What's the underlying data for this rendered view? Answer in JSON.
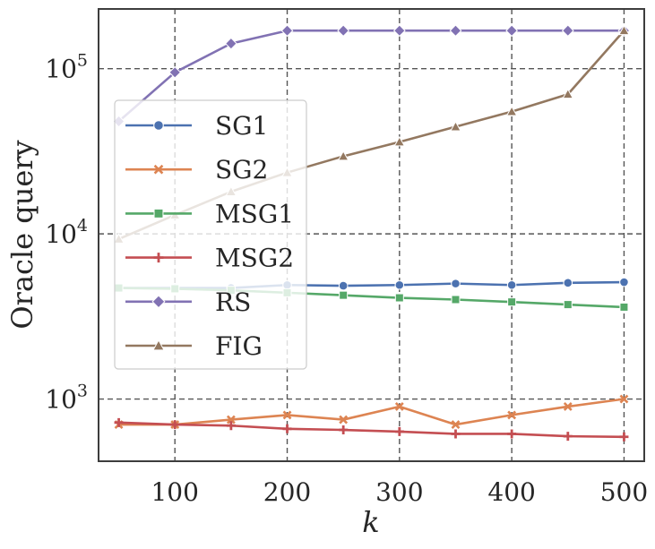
{
  "chart_data": {
    "type": "line",
    "title": "",
    "xlabel": "k",
    "ylabel": "Oracle query",
    "yscale": "log",
    "xlim": [
      32,
      518
    ],
    "ylim": [
      420,
      230000
    ],
    "grid": true,
    "legend_position": "center-left",
    "x": [
      50,
      100,
      150,
      200,
      250,
      300,
      350,
      400,
      450,
      500
    ],
    "x_ticks": [
      100,
      200,
      300,
      400,
      500
    ],
    "y_ticks": [
      {
        "value": 1000,
        "base": "10",
        "exp": "3"
      },
      {
        "value": 10000,
        "base": "10",
        "exp": "4"
      },
      {
        "value": 100000,
        "base": "10",
        "exp": "5"
      }
    ],
    "series": [
      {
        "name": "SG1",
        "color": "#4c72b0",
        "marker": "circle",
        "values": [
          4700,
          4700,
          4700,
          4900,
          4850,
          4900,
          5000,
          4900,
          5050,
          5100
        ]
      },
      {
        "name": "SG2",
        "color": "#dd8452",
        "marker": "x",
        "values": [
          700,
          700,
          750,
          800,
          750,
          900,
          700,
          800,
          900,
          1000
        ]
      },
      {
        "name": "MSG1",
        "color": "#55a868",
        "marker": "square",
        "values": [
          4700,
          4650,
          4550,
          4400,
          4250,
          4100,
          4000,
          3870,
          3730,
          3600
        ]
      },
      {
        "name": "MSG2",
        "color": "#c44e52",
        "marker": "plus",
        "values": [
          720,
          700,
          690,
          660,
          650,
          635,
          615,
          615,
          595,
          590
        ]
      },
      {
        "name": "RS",
        "color": "#8172b3",
        "marker": "diamond",
        "values": [
          48000,
          95000,
          142000,
          170000,
          170000,
          170000,
          170000,
          170000,
          170000,
          170000
        ]
      },
      {
        "name": "FIG",
        "color": "#937860",
        "marker": "triangle",
        "values": [
          9300,
          13000,
          18000,
          23500,
          29500,
          36000,
          44500,
          55000,
          70000,
          170000
        ]
      }
    ]
  }
}
